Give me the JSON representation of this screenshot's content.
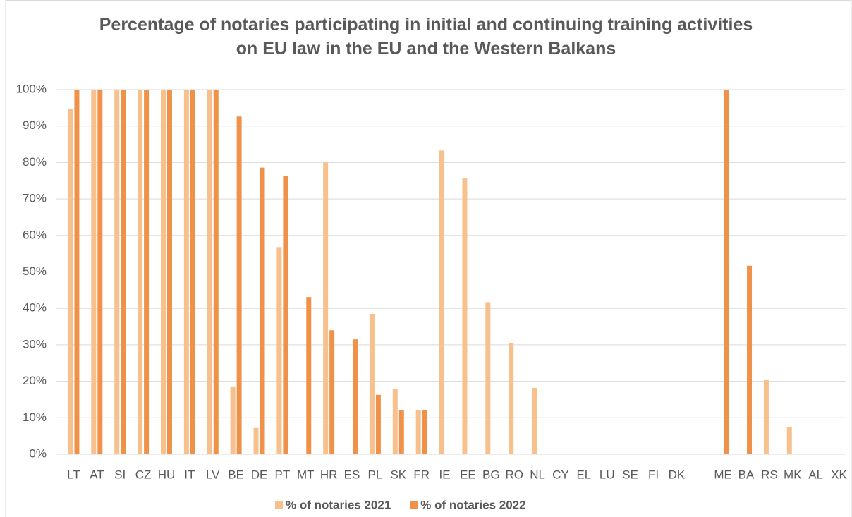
{
  "chart_data": {
    "type": "bar",
    "title": "Percentage of notaries participating in initial and continuing training activities on EU law in the EU and the Western Balkans",
    "categories": [
      "LT",
      "AT",
      "SI",
      "CZ",
      "HU",
      "IT",
      "LV",
      "BE",
      "DE",
      "PT",
      "MT",
      "HR",
      "ES",
      "PL",
      "SK",
      "FR",
      "IE",
      "EE",
      "BG",
      "RO",
      "NL",
      "CY",
      "EL",
      "LU",
      "SE",
      "FI",
      "DK",
      null,
      "ME",
      "BA",
      "RS",
      "MK",
      "AL",
      "XK"
    ],
    "series": [
      {
        "name": "% of notaries 2021",
        "color": "#f8c08c",
        "values": [
          94.7,
          100,
          100,
          100,
          100,
          100,
          100,
          18.6,
          7.2,
          56.8,
          0,
          80,
          0,
          38.5,
          18,
          12,
          83.3,
          75.6,
          41.7,
          30.4,
          18.2,
          0,
          0,
          0,
          0,
          0,
          0,
          null,
          0,
          0,
          20.3,
          7.5,
          0,
          0
        ]
      },
      {
        "name": "% of notaries 2022",
        "color": "#f0914a",
        "values": [
          100,
          100,
          100,
          100,
          100,
          100,
          100,
          92.6,
          78.6,
          76.3,
          43.1,
          34,
          31.5,
          16.3,
          12,
          12,
          0,
          0,
          0,
          0,
          0,
          0,
          0,
          0,
          0,
          0,
          0,
          null,
          100,
          51.7,
          0,
          0,
          0,
          0
        ]
      }
    ],
    "ylim": [
      0,
      100
    ],
    "yticks": [
      {
        "value": 0,
        "label": "0%"
      },
      {
        "value": 10,
        "label": "10%"
      },
      {
        "value": 20,
        "label": "20%"
      },
      {
        "value": 30,
        "label": "30%"
      },
      {
        "value": 40,
        "label": "40%"
      },
      {
        "value": 50,
        "label": "50%"
      },
      {
        "value": 60,
        "label": "60%"
      },
      {
        "value": 70,
        "label": "70%"
      },
      {
        "value": 80,
        "label": "80%"
      },
      {
        "value": 90,
        "label": "90%"
      },
      {
        "value": 100,
        "label": "100%"
      }
    ],
    "grid": true,
    "legend": "bottom"
  }
}
